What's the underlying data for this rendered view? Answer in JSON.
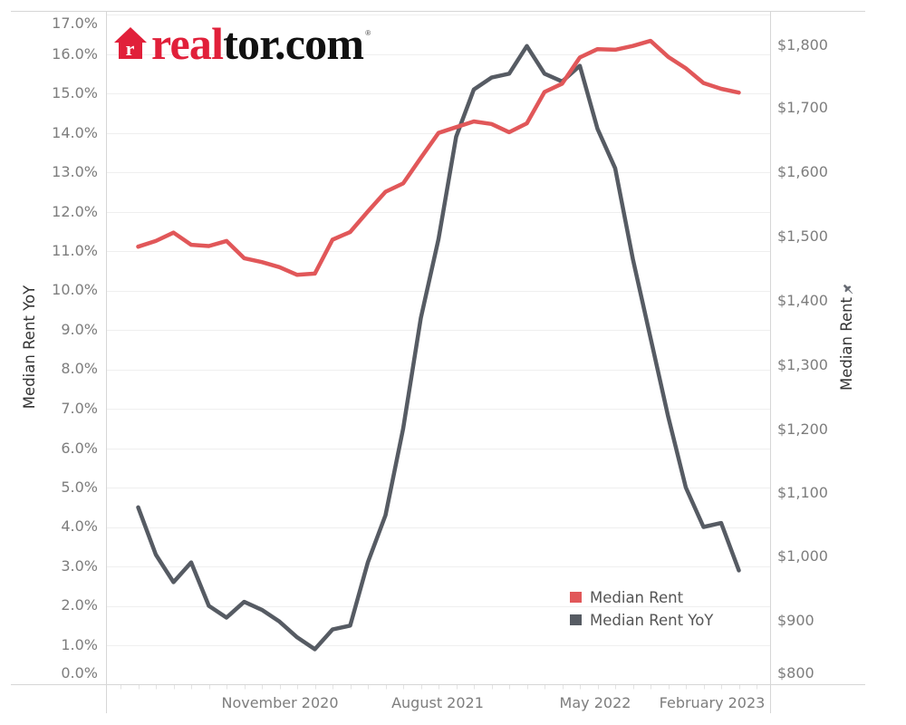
{
  "logo": {
    "icon": "realtor-house-icon",
    "icon_letter": "r",
    "text_red": "real",
    "text_black": "tor.com",
    "mark": "®",
    "colors": {
      "red": "#E1203A",
      "black": "#111111"
    }
  },
  "left_axis": {
    "title": "Median Rent YoY",
    "ticks": [
      "17.0%",
      "16.0%",
      "15.0%",
      "14.0%",
      "13.0%",
      "12.0%",
      "11.0%",
      "10.0%",
      "9.0%",
      "8.0%",
      "7.0%",
      "6.0%",
      "5.0%",
      "4.0%",
      "3.0%",
      "2.0%",
      "1.0%",
      "0.0%"
    ]
  },
  "right_axis": {
    "title": "Median Rent",
    "pin_icon": "pin-icon",
    "ticks": [
      "$1,800",
      "$1,700",
      "$1,600",
      "$1,500",
      "$1,400",
      "$1,300",
      "$1,200",
      "$1,100",
      "$1,000",
      "$900",
      "$800"
    ]
  },
  "x_axis": {
    "ticks": [
      "November 2020",
      "August 2021",
      "May 2022",
      "February 2023"
    ]
  },
  "legend": {
    "items": [
      {
        "label": "Median Rent",
        "color": "#E15759"
      },
      {
        "label": "Median Rent YoY",
        "color": "#565B63"
      }
    ]
  },
  "chart_data": {
    "type": "line",
    "title": "",
    "xlabel": "",
    "ylabel": "Median Rent YoY",
    "y2label": "Median Rent",
    "ylim": [
      0,
      17
    ],
    "y2lim": [
      800,
      1800
    ],
    "grid": true,
    "legend_position": "inside plot, bottom-right",
    "xtick_labels": [
      "November 2020",
      "August 2021",
      "May 2022",
      "February 2023"
    ],
    "x": [
      "March 2020",
      "April 2020",
      "May 2020",
      "June 2020",
      "July 2020",
      "August 2020",
      "September 2020",
      "October 2020",
      "November 2020",
      "December 2020",
      "January 2021",
      "February 2021",
      "March 2021",
      "April 2021",
      "May 2021",
      "June 2021",
      "July 2021",
      "August 2021",
      "September 2021",
      "October 2021",
      "November 2021",
      "December 2021",
      "January 2022",
      "February 2022",
      "March 2022",
      "April 2022",
      "May 2022",
      "June 2022",
      "July 2022",
      "August 2022",
      "September 2022",
      "October 2022",
      "November 2022",
      "December 2022",
      "January 2023"
    ],
    "series": [
      {
        "name": "Median Rent",
        "axis": "right",
        "unit": "USD",
        "color": "#E15759",
        "values": [
          1485,
          1494,
          1507,
          1488,
          1486,
          1494,
          1467,
          1461,
          1453,
          1441,
          1443,
          1496,
          1508,
          1540,
          1571,
          1584,
          1624,
          1663,
          1672,
          1681,
          1677,
          1664,
          1678,
          1727,
          1740,
          1781,
          1794,
          1793,
          1799,
          1807,
          1782,
          1764,
          1741,
          1732,
          1726
        ]
      },
      {
        "name": "Median Rent YoY",
        "axis": "left",
        "unit": "%",
        "color": "#565B63",
        "values": [
          4.5,
          3.3,
          2.6,
          3.1,
          2.0,
          1.7,
          2.1,
          1.9,
          1.6,
          1.2,
          0.9,
          1.4,
          1.5,
          3.1,
          4.3,
          6.5,
          9.3,
          11.3,
          13.9,
          15.1,
          15.4,
          15.5,
          16.2,
          15.5,
          15.3,
          15.7,
          14.1,
          13.1,
          10.8,
          8.8,
          6.8,
          5.0,
          4.0,
          4.1,
          2.9
        ]
      }
    ]
  }
}
